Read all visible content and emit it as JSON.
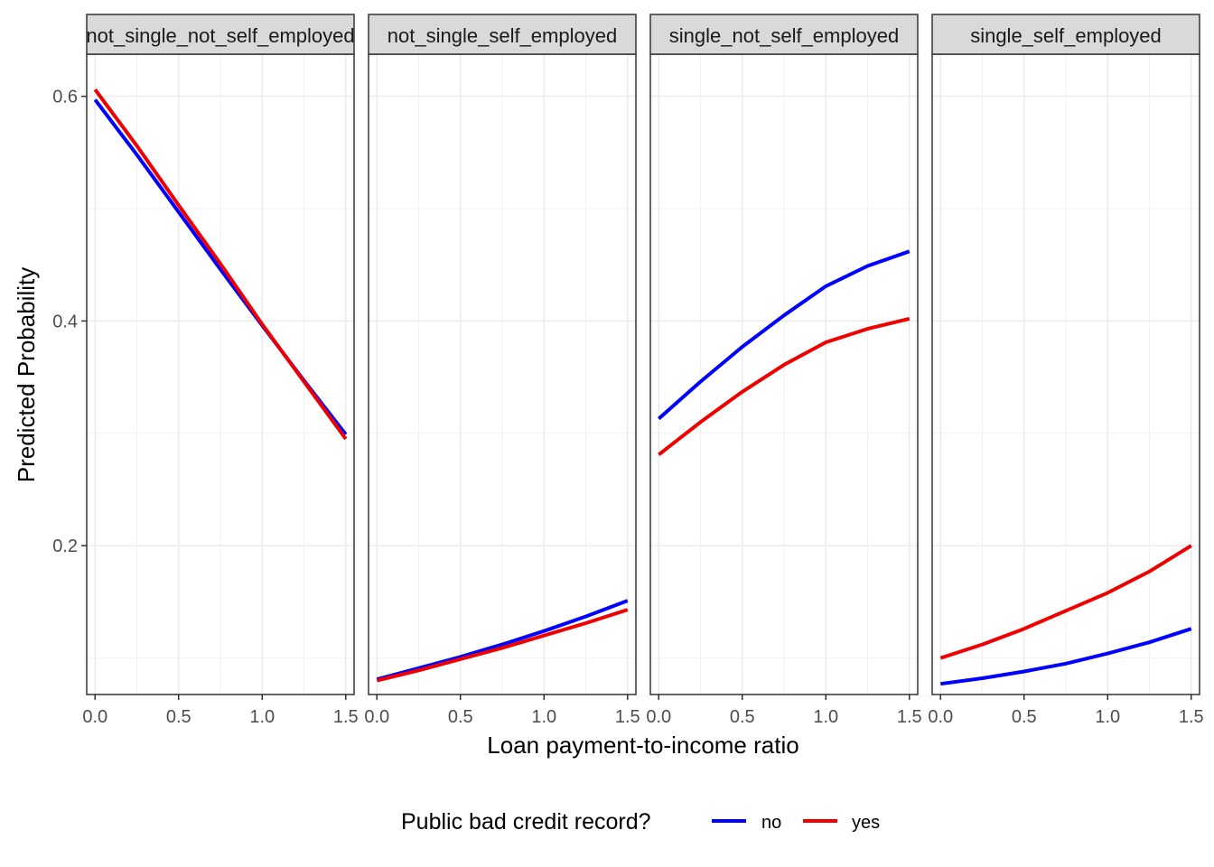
{
  "chart_data": {
    "type": "line",
    "xlabel": "Loan payment-to-income ratio",
    "ylabel": "Predicted Probability",
    "xlim": [
      -0.05,
      1.55
    ],
    "ylim": [
      0.0675,
      0.6375
    ],
    "x_ticks": [
      0.0,
      0.5,
      1.0,
      1.5
    ],
    "x_tick_labels": [
      "0.0",
      "0.5",
      "1.0",
      "1.5"
    ],
    "y_ticks": [
      0.2,
      0.4,
      0.6
    ],
    "y_tick_labels": [
      "0.2",
      "0.4",
      "0.6"
    ],
    "grid": true,
    "legend": {
      "title": "Public bad credit record?",
      "position": "bottom",
      "entries": [
        {
          "label": "no",
          "color": "#0000ff"
        },
        {
          "label": "yes",
          "color": "#ee0000"
        }
      ]
    },
    "x": [
      0.0,
      0.25,
      0.5,
      0.75,
      1.0,
      1.25,
      1.5
    ],
    "panels": [
      {
        "title": "not_single_not_self_employed",
        "series": [
          {
            "name": "no",
            "color": "#0000ff",
            "values": [
              0.597,
              0.548,
              0.497,
              0.446,
              0.396,
              0.347,
              0.299
            ]
          },
          {
            "name": "yes",
            "color": "#ee0000",
            "values": [
              0.606,
              0.556,
              0.503,
              0.451,
              0.397,
              0.346,
              0.295
            ]
          }
        ]
      },
      {
        "title": "not_single_self_employed",
        "series": [
          {
            "name": "no",
            "color": "#0000ff",
            "values": [
              0.081,
              0.091,
              0.101,
              0.112,
              0.124,
              0.137,
              0.151
            ]
          },
          {
            "name": "yes",
            "color": "#ee0000",
            "values": [
              0.08,
              0.089,
              0.099,
              0.109,
              0.12,
              0.131,
              0.143
            ]
          }
        ]
      },
      {
        "title": "single_not_self_employed",
        "series": [
          {
            "name": "no",
            "color": "#0000ff",
            "values": [
              0.313,
              0.346,
              0.377,
              0.405,
              0.431,
              0.449,
              0.462
            ]
          },
          {
            "name": "yes",
            "color": "#ee0000",
            "values": [
              0.281,
              0.31,
              0.337,
              0.361,
              0.381,
              0.393,
              0.402
            ]
          }
        ]
      },
      {
        "title": "single_self_employed",
        "series": [
          {
            "name": "no",
            "color": "#0000ff",
            "values": [
              0.077,
              0.082,
              0.088,
              0.095,
              0.104,
              0.114,
              0.126
            ]
          },
          {
            "name": "yes",
            "color": "#ee0000",
            "values": [
              0.1,
              0.112,
              0.126,
              0.142,
              0.158,
              0.177,
              0.2
            ]
          }
        ]
      }
    ]
  }
}
